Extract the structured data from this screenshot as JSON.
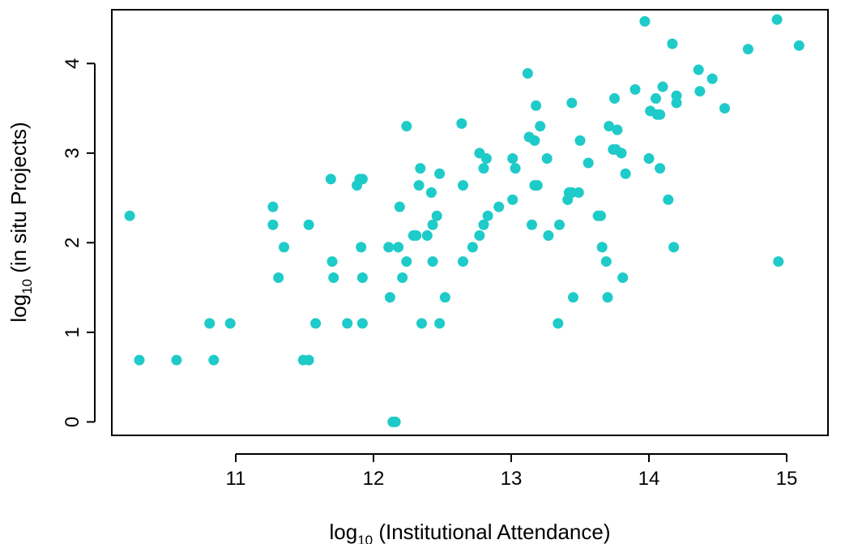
{
  "chart_data": {
    "type": "scatter",
    "title": "",
    "xlabel": {
      "prefix": "log",
      "subscript": "10",
      "suffix": " (Institutional Attendance)"
    },
    "ylabel": {
      "prefix": "log",
      "subscript": "10",
      "suffix": " (in situ Projects)"
    },
    "xlim": [
      10.1,
      15.3
    ],
    "ylim": [
      -0.15,
      4.6
    ],
    "x_ticks": [
      11,
      12,
      13,
      14,
      15
    ],
    "y_ticks": [
      0,
      1,
      2,
      3,
      4
    ],
    "grid": false,
    "point_color": "#1ECBC8",
    "points": [
      [
        10.23,
        2.3
      ],
      [
        10.3,
        0.69
      ],
      [
        10.57,
        0.69
      ],
      [
        10.81,
        1.1
      ],
      [
        10.84,
        0.69
      ],
      [
        10.96,
        1.1
      ],
      [
        11.27,
        2.4
      ],
      [
        11.27,
        2.2
      ],
      [
        11.31,
        1.61
      ],
      [
        11.35,
        1.95
      ],
      [
        11.49,
        0.69
      ],
      [
        11.53,
        0.69
      ],
      [
        11.53,
        2.2
      ],
      [
        11.58,
        1.1
      ],
      [
        11.69,
        2.71
      ],
      [
        11.7,
        1.79
      ],
      [
        11.71,
        1.61
      ],
      [
        11.81,
        1.1
      ],
      [
        11.88,
        2.64
      ],
      [
        11.9,
        2.71
      ],
      [
        11.91,
        1.95
      ],
      [
        11.92,
        2.71
      ],
      [
        11.92,
        1.61
      ],
      [
        11.92,
        1.1
      ],
      [
        12.11,
        1.95
      ],
      [
        12.12,
        1.39
      ],
      [
        12.14,
        0.0
      ],
      [
        12.16,
        0.0
      ],
      [
        12.18,
        1.95
      ],
      [
        12.19,
        2.4
      ],
      [
        12.21,
        1.61
      ],
      [
        12.24,
        3.3
      ],
      [
        12.24,
        1.79
      ],
      [
        12.29,
        2.08
      ],
      [
        12.31,
        2.08
      ],
      [
        12.33,
        2.64
      ],
      [
        12.34,
        2.83
      ],
      [
        12.35,
        1.1
      ],
      [
        12.39,
        2.08
      ],
      [
        12.42,
        2.56
      ],
      [
        12.43,
        2.2
      ],
      [
        12.43,
        1.79
      ],
      [
        12.46,
        2.3
      ],
      [
        12.48,
        2.77
      ],
      [
        12.48,
        1.1
      ],
      [
        12.52,
        1.39
      ],
      [
        12.64,
        3.33
      ],
      [
        12.65,
        2.64
      ],
      [
        12.65,
        1.79
      ],
      [
        12.72,
        1.95
      ],
      [
        12.77,
        3.0
      ],
      [
        12.77,
        2.08
      ],
      [
        12.8,
        2.83
      ],
      [
        12.8,
        2.2
      ],
      [
        12.82,
        2.94
      ],
      [
        12.83,
        2.3
      ],
      [
        12.91,
        2.4
      ],
      [
        13.01,
        2.94
      ],
      [
        13.01,
        2.48
      ],
      [
        13.03,
        2.83
      ],
      [
        13.12,
        3.89
      ],
      [
        13.13,
        3.18
      ],
      [
        13.15,
        2.2
      ],
      [
        13.17,
        2.64
      ],
      [
        13.17,
        3.14
      ],
      [
        13.18,
        3.53
      ],
      [
        13.19,
        2.64
      ],
      [
        13.21,
        3.3
      ],
      [
        13.26,
        2.94
      ],
      [
        13.27,
        2.08
      ],
      [
        13.34,
        1.1
      ],
      [
        13.35,
        2.2
      ],
      [
        13.41,
        2.48
      ],
      [
        13.42,
        2.56
      ],
      [
        13.44,
        2.56
      ],
      [
        13.44,
        3.56
      ],
      [
        13.45,
        1.39
      ],
      [
        13.49,
        2.56
      ],
      [
        13.5,
        3.14
      ],
      [
        13.56,
        2.89
      ],
      [
        13.63,
        2.3
      ],
      [
        13.65,
        2.3
      ],
      [
        13.66,
        1.95
      ],
      [
        13.69,
        1.79
      ],
      [
        13.7,
        1.39
      ],
      [
        13.71,
        3.3
      ],
      [
        13.74,
        3.04
      ],
      [
        13.75,
        3.61
      ],
      [
        13.76,
        3.04
      ],
      [
        13.77,
        3.26
      ],
      [
        13.8,
        3.0
      ],
      [
        13.81,
        1.61
      ],
      [
        13.83,
        2.77
      ],
      [
        13.9,
        3.71
      ],
      [
        13.97,
        4.47
      ],
      [
        14.0,
        2.94
      ],
      [
        14.01,
        3.47
      ],
      [
        14.05,
        3.61
      ],
      [
        14.06,
        3.43
      ],
      [
        14.08,
        3.43
      ],
      [
        14.08,
        2.83
      ],
      [
        14.1,
        3.74
      ],
      [
        14.14,
        2.48
      ],
      [
        14.17,
        4.22
      ],
      [
        14.18,
        1.95
      ],
      [
        14.2,
        3.64
      ],
      [
        14.2,
        3.56
      ],
      [
        14.36,
        3.93
      ],
      [
        14.37,
        3.69
      ],
      [
        14.46,
        3.83
      ],
      [
        14.55,
        3.5
      ],
      [
        14.72,
        4.16
      ],
      [
        14.93,
        4.49
      ],
      [
        14.94,
        1.79
      ],
      [
        15.09,
        4.2
      ]
    ]
  }
}
